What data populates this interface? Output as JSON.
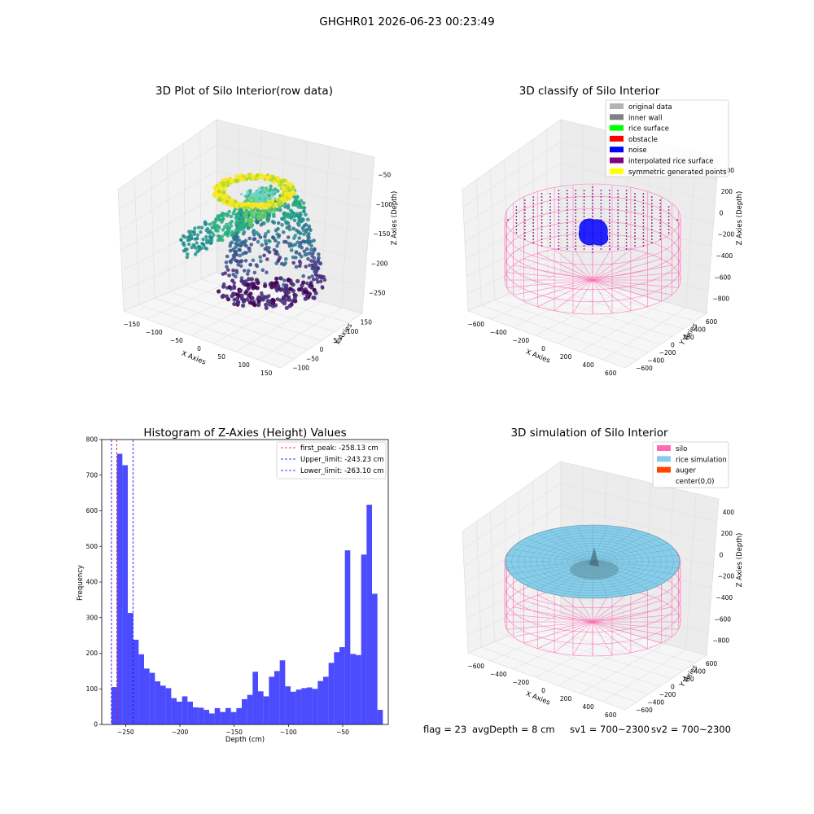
{
  "suptitle": "GHGHR01 2026-06-23 00:23:49",
  "footer": {
    "flag": "flag = 23",
    "avg_depth": "avgDepth = 8 cm",
    "sv1": "sv1 = 700~2300",
    "sv2": "sv2 = 700~2300"
  },
  "chart_data": [
    {
      "type": "scatter3d",
      "title": "3D Plot of Silo Interior(row data)",
      "xlabel": "X Axies",
      "ylabel": "Y Axies",
      "zlabel": "Z Axies (Depth)",
      "xticks": [
        "−150",
        "−100",
        "−50",
        "0",
        "50",
        "100",
        "150"
      ],
      "yticks": [
        "−100",
        "−50",
        "0",
        "50",
        "100",
        "150"
      ],
      "zticks": [
        "−50",
        "−100",
        "−150",
        "−200",
        "−250"
      ],
      "colormap": "viridis"
    },
    {
      "type": "scatter3d",
      "title": "3D classify of Silo Interior",
      "xlabel": "X Axies",
      "ylabel": "Y Axies",
      "zlabel": "Z Axies (Depth)",
      "xticks": [
        "−600",
        "−400",
        "−200",
        "0",
        "200",
        "400",
        "600"
      ],
      "yticks": [
        "−600",
        "−400",
        "−200",
        "0",
        "200",
        "400",
        "600"
      ],
      "zticks": [
        "400",
        "200",
        "0",
        "−200",
        "−400",
        "−600",
        "−800"
      ],
      "legend_position": "top-right",
      "legend": [
        {
          "label": "original data",
          "color": "#b3b3b3"
        },
        {
          "label": "inner wall",
          "color": "#808080"
        },
        {
          "label": "rice surface",
          "color": "#00ff00"
        },
        {
          "label": "obstacle",
          "color": "#ff0000"
        },
        {
          "label": "noise",
          "color": "#0000ff"
        },
        {
          "label": "interpolated rice surface",
          "color": "#800080"
        },
        {
          "label": "symmetric generated points",
          "color": "#ffff00"
        }
      ]
    },
    {
      "type": "bar",
      "title": "Histogram of Z-Axies (Height) Values",
      "xlabel": "Depth (cm)",
      "ylabel": "Frequency",
      "xlim": [
        -272,
        -8
      ],
      "ylim": [
        0,
        800
      ],
      "xticks": [
        -250,
        -200,
        -150,
        -100,
        -50
      ],
      "xtick_labels": [
        "−250",
        "−200",
        "−150",
        "−100",
        "−50"
      ],
      "yticks": [
        0,
        100,
        200,
        300,
        400,
        500,
        600,
        700,
        800
      ],
      "bin_start": -263,
      "bin_width": 5,
      "bar_color": "#0000ff",
      "values": [
        105,
        760,
        728,
        313,
        238,
        197,
        157,
        145,
        121,
        109,
        102,
        74,
        64,
        79,
        64,
        48,
        47,
        41,
        31,
        46,
        35,
        46,
        35,
        46,
        71,
        83,
        148,
        93,
        79,
        134,
        150,
        180,
        107,
        92,
        98,
        102,
        104,
        100,
        122,
        134,
        173,
        203,
        217,
        489,
        198,
        195,
        477,
        617,
        367,
        41
      ],
      "vlines": [
        {
          "x": -258.13,
          "color": "#ff0000",
          "label": "first_peak: -258.13 cm"
        },
        {
          "x": -243.23,
          "color": "#0000ff",
          "label": "Upper_limit: -243.23 cm"
        },
        {
          "x": -263.1,
          "color": "#0000ff",
          "label": "Lower_limit: -263.10 cm"
        }
      ],
      "legend_position": "top-right"
    },
    {
      "type": "surface3d",
      "title": "3D simulation of Silo Interior",
      "xlabel": "X Axies",
      "ylabel": "Y Axies",
      "zlabel": "Z Axies (Depth)",
      "xticks": [
        "−600",
        "−400",
        "−200",
        "0",
        "200",
        "400",
        "600"
      ],
      "yticks": [
        "−600",
        "−400",
        "−200",
        "0",
        "200",
        "400",
        "600"
      ],
      "zticks": [
        "400",
        "200",
        "0",
        "−200",
        "−400",
        "−600",
        "−800"
      ],
      "legend_position": "top-right",
      "legend": [
        {
          "label": "silo",
          "color": "#ff69b4"
        },
        {
          "label": "rice simulation",
          "color": "#87ceeb"
        },
        {
          "label": "auger",
          "color": "#ff4500"
        },
        {
          "label": "center(0,0)",
          "color": "#ffffff"
        }
      ]
    }
  ]
}
